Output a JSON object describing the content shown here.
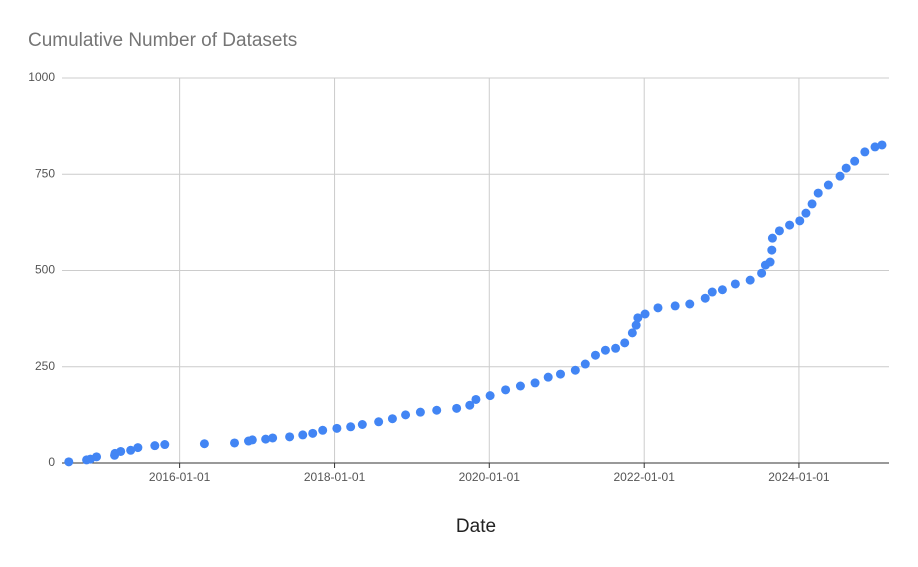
{
  "chart_data": {
    "type": "scatter",
    "title": "Cumulative Number of Datasets",
    "x_label": "Date",
    "x": [
      "2014-07-27",
      "2014-10-19",
      "2014-11-06",
      "2014-12-05",
      "2015-02-28",
      "2015-03-02",
      "2015-03-29",
      "2015-05-15",
      "2015-06-18",
      "2015-09-06",
      "2015-10-23",
      "2016-04-27",
      "2016-09-16",
      "2016-11-21",
      "2016-12-09",
      "2017-02-10",
      "2017-03-15",
      "2017-06-03",
      "2017-08-04",
      "2017-09-20",
      "2017-11-06",
      "2018-01-12",
      "2018-03-18",
      "2018-05-12",
      "2018-07-28",
      "2018-10-01",
      "2018-12-02",
      "2019-02-10",
      "2019-04-28",
      "2019-07-31",
      "2019-10-01",
      "2019-10-30",
      "2020-01-05",
      "2020-03-18",
      "2020-05-27",
      "2020-08-04",
      "2020-10-05",
      "2020-12-02",
      "2021-02-10",
      "2021-03-29",
      "2021-05-16",
      "2021-07-02",
      "2021-08-19",
      "2021-10-01",
      "2021-11-06",
      "2021-11-24",
      "2021-12-02",
      "2022-01-05",
      "2022-03-07",
      "2022-05-27",
      "2022-08-04",
      "2022-10-16",
      "2022-11-18",
      "2023-01-05",
      "2023-03-07",
      "2023-05-16",
      "2023-07-09",
      "2023-07-27",
      "2023-08-18",
      "2023-08-26",
      "2023-08-29",
      "2023-10-01",
      "2023-11-18",
      "2024-01-05",
      "2024-02-03",
      "2024-03-03",
      "2024-04-01",
      "2024-05-19",
      "2024-07-13",
      "2024-08-11",
      "2024-09-20",
      "2024-11-07",
      "2024-12-25",
      "2025-01-27"
    ],
    "series": [
      {
        "name": "Cumulative Number of Datasets",
        "color": "#4285f4",
        "values": [
          3,
          8,
          10,
          16,
          20,
          25,
          30,
          33,
          40,
          45,
          48,
          50,
          52,
          57,
          60,
          62,
          65,
          68,
          73,
          77,
          85,
          90,
          94,
          100,
          107,
          115,
          125,
          132,
          137,
          142,
          150,
          165,
          175,
          190,
          200,
          208,
          223,
          231,
          241,
          257,
          280,
          293,
          298,
          312,
          338,
          358,
          377,
          387,
          403,
          408,
          413,
          428,
          444,
          450,
          465,
          475,
          493,
          514,
          522,
          553,
          584,
          603,
          618,
          629,
          649,
          673,
          701,
          722,
          745,
          766,
          784,
          808,
          821,
          826
        ]
      }
    ],
    "xlim": [
      "2014-06-25",
      "2025-03-01"
    ],
    "xticks": [
      "2016-01-01",
      "2018-01-01",
      "2020-01-01",
      "2022-01-01",
      "2024-01-01"
    ],
    "ylim": [
      0,
      1000
    ],
    "yticks": [
      0,
      250,
      500,
      750,
      1000
    ],
    "grid": true
  }
}
